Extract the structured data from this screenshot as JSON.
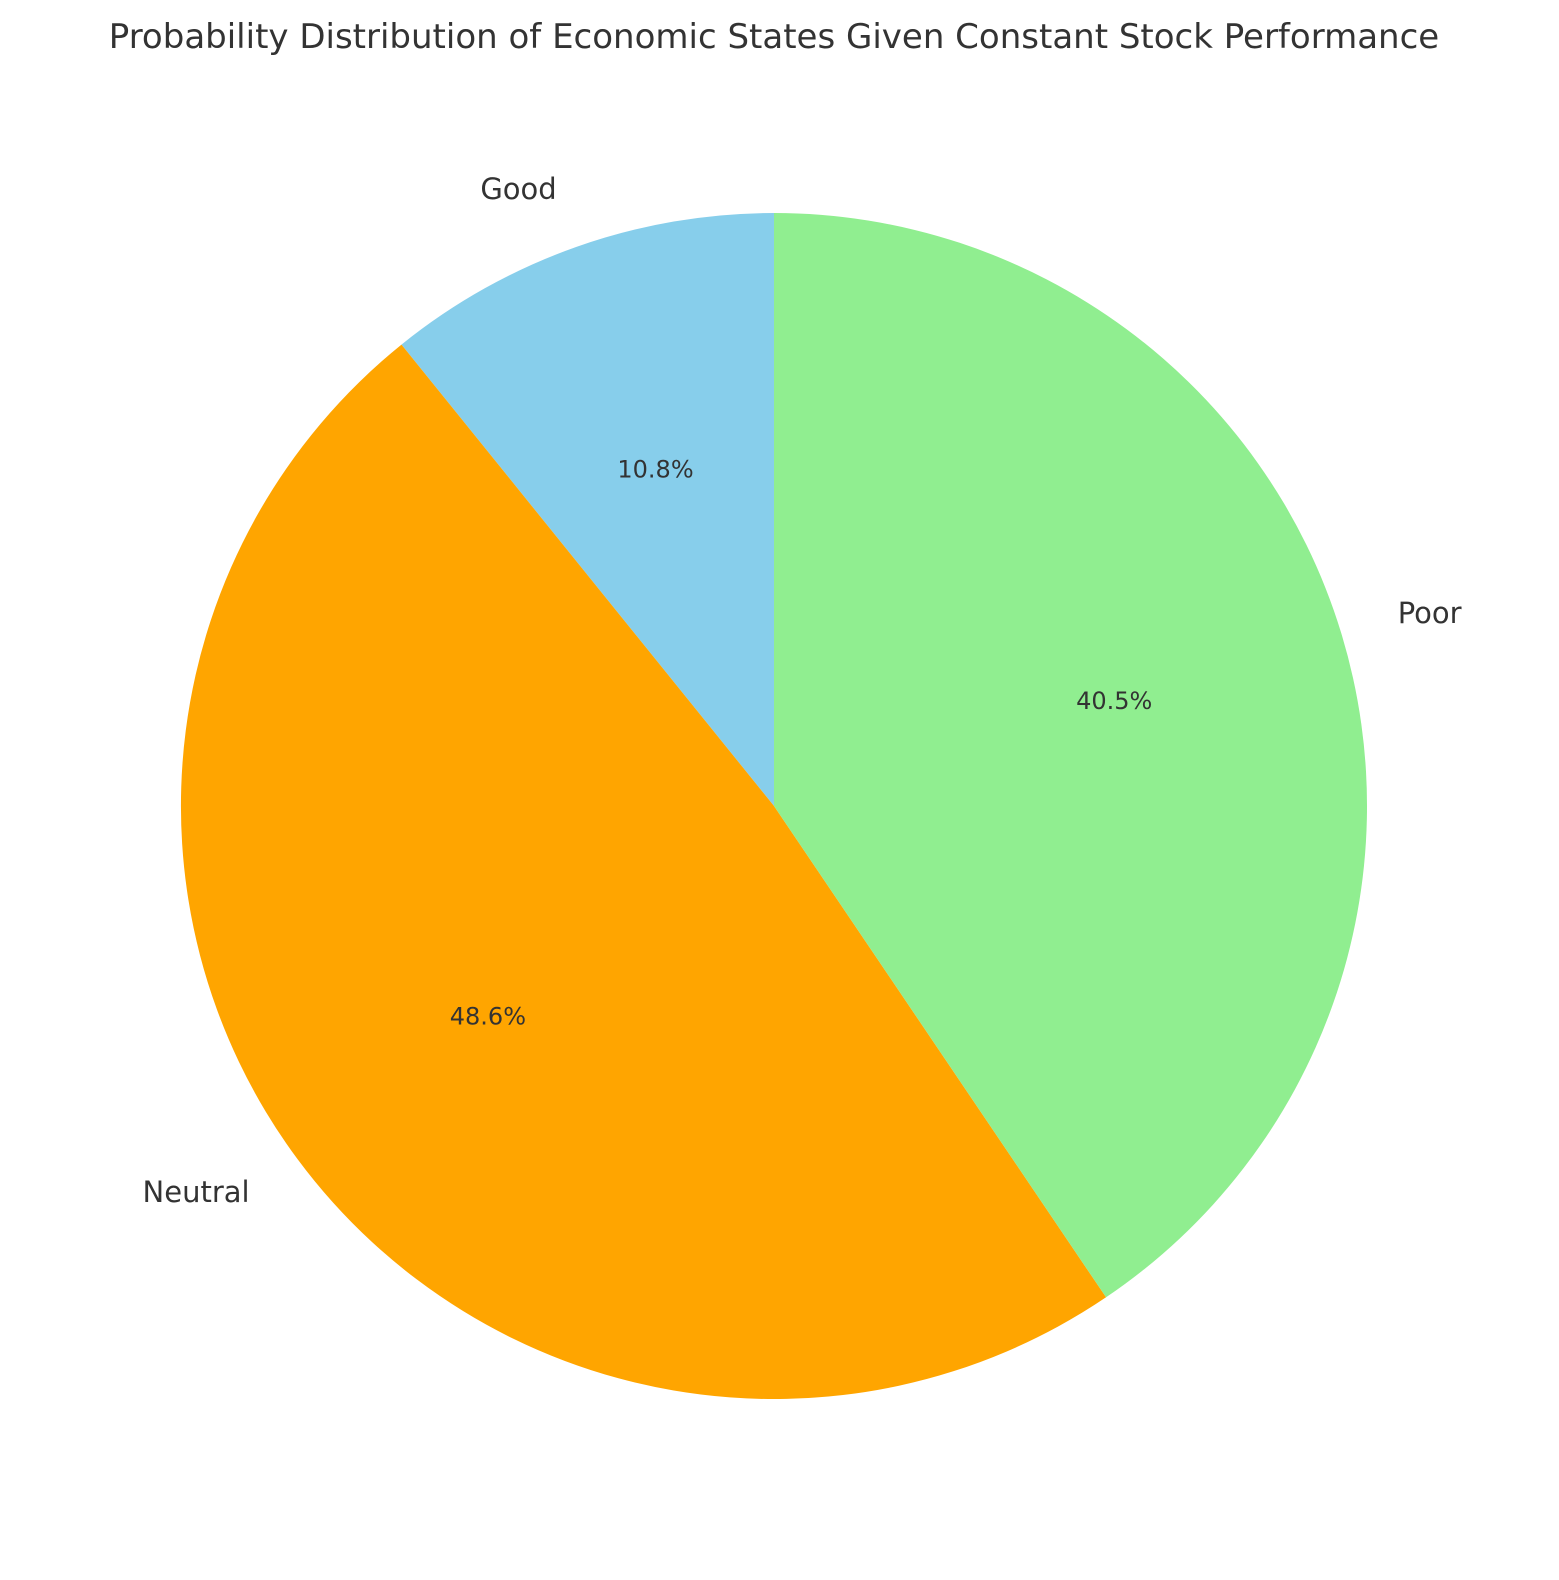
{
  "chart_data": {
    "type": "pie",
    "title": "Probability Distribution of Economic States Given Constant Stock Performance",
    "start_angle_deg": 90,
    "direction": "counterclockwise",
    "slices": [
      {
        "label": "Good",
        "value": 10.8,
        "pct_label": "10.8%",
        "color": "#87CEEB"
      },
      {
        "label": "Neutral",
        "value": 48.6,
        "pct_label": "48.6%",
        "color": "#FFA500"
      },
      {
        "label": "Poor",
        "value": 40.5,
        "pct_label": "40.5%",
        "color": "#90EE90"
      }
    ]
  }
}
